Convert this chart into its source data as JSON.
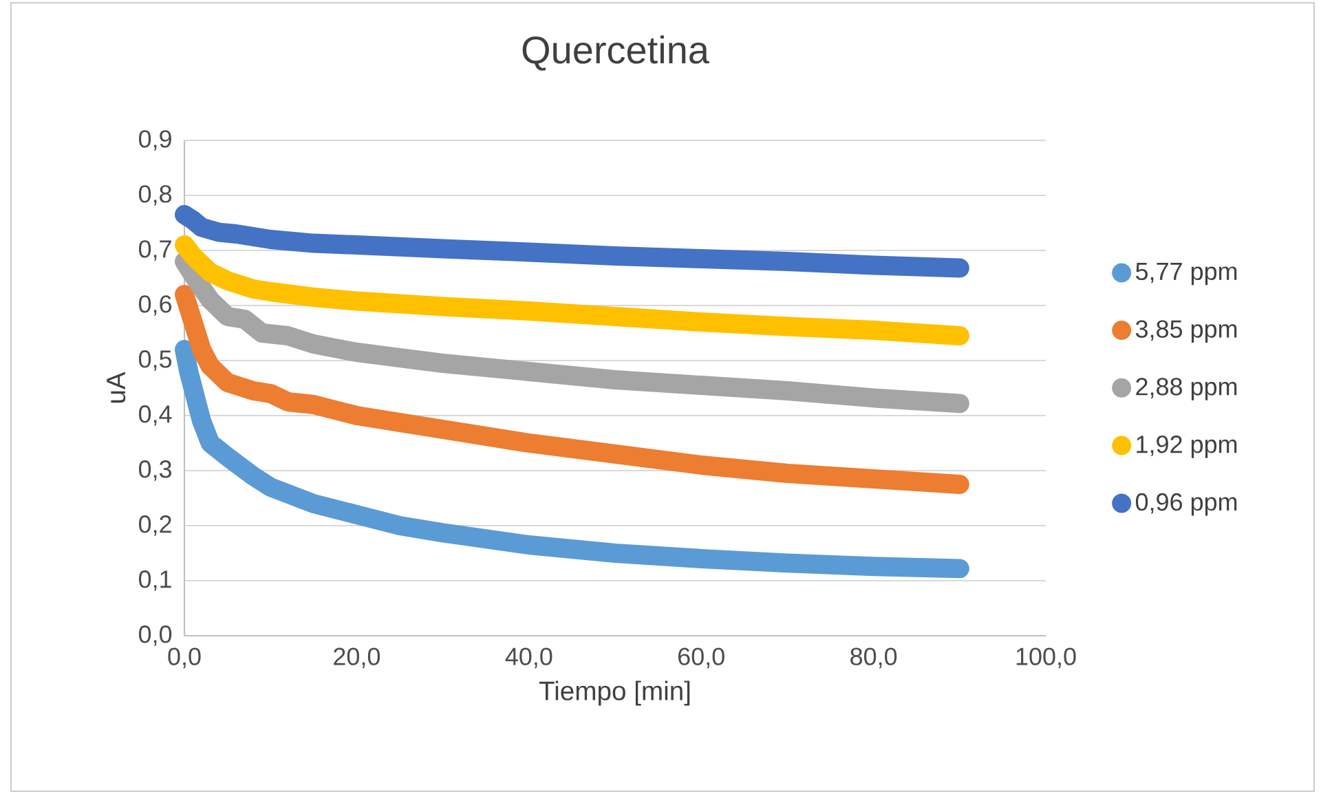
{
  "chart_data": {
    "type": "line",
    "title": "Quercetina",
    "xlabel": "Tiempo [min]",
    "ylabel": "uA",
    "xlim": [
      0,
      100
    ],
    "xticks": [
      {
        "value": 0,
        "label": "0,0"
      },
      {
        "value": 20,
        "label": "20,0"
      },
      {
        "value": 40,
        "label": "40,0"
      },
      {
        "value": 60,
        "label": "60,0"
      },
      {
        "value": 80,
        "label": "80,0"
      },
      {
        "value": 100,
        "label": "100,0"
      }
    ],
    "ylim": [
      0,
      0.9
    ],
    "yticks": [
      {
        "value": 0,
        "label": "0,0"
      },
      {
        "value": 0.1,
        "label": "0,1"
      },
      {
        "value": 0.2,
        "label": "0,2"
      },
      {
        "value": 0.3,
        "label": "0,3"
      },
      {
        "value": 0.4,
        "label": "0,4"
      },
      {
        "value": 0.5,
        "label": "0,5"
      },
      {
        "value": 0.6,
        "label": "0,6"
      },
      {
        "value": 0.7,
        "label": "0,7"
      },
      {
        "value": 0.8,
        "label": "0,8"
      },
      {
        "value": 0.9,
        "label": "0,9"
      }
    ],
    "grid": "y",
    "legend": "right",
    "marker": "none",
    "line_style": "solid",
    "series": [
      {
        "name": "5,77 ppm",
        "color": "#5b9bd5",
        "x": [
          0,
          0.5,
          1,
          2,
          3,
          5,
          8,
          10,
          15,
          20,
          25,
          30,
          40,
          50,
          60,
          70,
          80,
          90
        ],
        "values": [
          0.52,
          0.48,
          0.45,
          0.39,
          0.35,
          0.325,
          0.29,
          0.27,
          0.24,
          0.22,
          0.2,
          0.187,
          0.165,
          0.15,
          0.14,
          0.132,
          0.126,
          0.122
        ]
      },
      {
        "name": "3,85 ppm",
        "color": "#ed7d31",
        "x": [
          0,
          1,
          2,
          3,
          5,
          8,
          10,
          12,
          15,
          20,
          30,
          40,
          50,
          60,
          70,
          80,
          90
        ],
        "values": [
          0.62,
          0.57,
          0.52,
          0.49,
          0.46,
          0.445,
          0.44,
          0.425,
          0.42,
          0.4,
          0.375,
          0.35,
          0.33,
          0.31,
          0.295,
          0.285,
          0.275
        ]
      },
      {
        "name": "2,88 ppm",
        "color": "#a5a5a5",
        "x": [
          0,
          1,
          3,
          5,
          7,
          9,
          12,
          15,
          20,
          30,
          40,
          50,
          60,
          70,
          80,
          90
        ],
        "values": [
          0.68,
          0.655,
          0.61,
          0.58,
          0.575,
          0.55,
          0.545,
          0.53,
          0.515,
          0.495,
          0.48,
          0.465,
          0.455,
          0.445,
          0.432,
          0.422
        ]
      },
      {
        "name": "1,92 ppm",
        "color": "#ffc000",
        "x": [
          0,
          1,
          3,
          5,
          8,
          10,
          15,
          20,
          30,
          40,
          50,
          60,
          70,
          80,
          90
        ],
        "values": [
          0.71,
          0.69,
          0.66,
          0.645,
          0.63,
          0.625,
          0.615,
          0.608,
          0.598,
          0.59,
          0.58,
          0.57,
          0.562,
          0.555,
          0.545
        ]
      },
      {
        "name": "0,96 ppm",
        "color": "#4472c4",
        "x": [
          0,
          1,
          2,
          4,
          6,
          8,
          10,
          15,
          20,
          30,
          40,
          50,
          60,
          70,
          80,
          90
        ],
        "values": [
          0.765,
          0.755,
          0.742,
          0.733,
          0.73,
          0.725,
          0.72,
          0.713,
          0.71,
          0.703,
          0.697,
          0.69,
          0.685,
          0.68,
          0.673,
          0.668
        ]
      }
    ]
  }
}
